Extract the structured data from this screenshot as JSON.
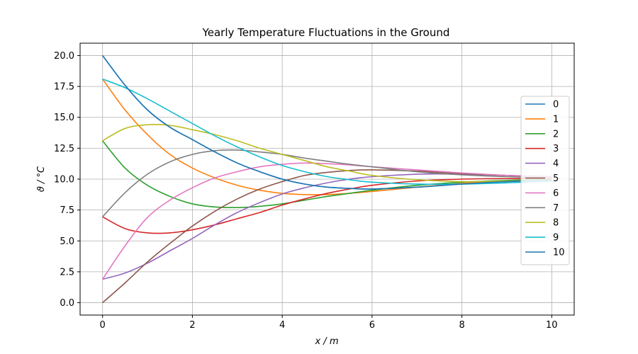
{
  "chart_data": {
    "type": "line",
    "title": "Yearly Temperature Fluctuations in the Ground",
    "xlabel": "x / m",
    "ylabel": "ϑ / °C",
    "xlim": [
      -0.5,
      10.5
    ],
    "ylim": [
      -1.0,
      21.0
    ],
    "xticks": [
      0,
      2,
      4,
      6,
      8,
      10
    ],
    "yticks": [
      0.0,
      2.5,
      5.0,
      7.5,
      10.0,
      12.5,
      15.0,
      17.5,
      20.0
    ],
    "xtick_labels": [
      "0",
      "2",
      "4",
      "6",
      "8",
      "10"
    ],
    "ytick_labels": [
      "0.0",
      "2.5",
      "5.0",
      "7.5",
      "10.0",
      "12.5",
      "15.0",
      "17.5",
      "20.0"
    ],
    "grid": true,
    "legend_position": "center-right",
    "series": [
      {
        "name": "0",
        "color": "#1f77b4",
        "x": [
          0,
          0.5,
          1,
          1.5,
          2,
          2.5,
          3,
          3.5,
          4,
          4.5,
          5,
          5.5,
          6,
          7,
          8,
          9,
          10
        ],
        "y": [
          20.0,
          17.6,
          15.6,
          14.2,
          13.2,
          12.2,
          11.3,
          10.6,
          10.0,
          9.6,
          9.35,
          9.25,
          9.2,
          9.35,
          9.6,
          9.8,
          9.9
        ]
      },
      {
        "name": "1",
        "color": "#ff7f0e",
        "x": [
          0,
          0.5,
          1,
          1.5,
          2,
          2.5,
          3,
          3.5,
          4,
          4.5,
          5,
          5.5,
          6,
          7,
          8,
          9,
          10
        ],
        "y": [
          18.1,
          15.6,
          13.6,
          12.0,
          10.9,
          10.1,
          9.5,
          9.1,
          8.85,
          8.75,
          8.75,
          8.85,
          9.0,
          9.35,
          9.65,
          9.85,
          9.95
        ]
      },
      {
        "name": "2",
        "color": "#2ca02c",
        "x": [
          0,
          0.5,
          1,
          1.5,
          2,
          2.5,
          3,
          3.5,
          4,
          4.5,
          5,
          5.5,
          6,
          7,
          8,
          9,
          10
        ],
        "y": [
          13.1,
          10.9,
          9.5,
          8.6,
          8.0,
          7.75,
          7.7,
          7.8,
          8.0,
          8.3,
          8.6,
          8.85,
          9.1,
          9.5,
          9.75,
          9.9,
          10.0
        ]
      },
      {
        "name": "3",
        "color": "#d62728",
        "x": [
          0,
          0.5,
          1,
          1.5,
          2,
          2.5,
          3,
          3.5,
          4,
          4.5,
          5,
          5.5,
          6,
          7,
          8,
          9,
          10
        ],
        "y": [
          6.95,
          6.0,
          5.65,
          5.65,
          5.9,
          6.3,
          6.8,
          7.3,
          7.9,
          8.4,
          8.85,
          9.2,
          9.5,
          9.85,
          10.0,
          10.05,
          10.05
        ]
      },
      {
        "name": "4",
        "color": "#9467bd",
        "x": [
          0,
          0.5,
          1,
          1.5,
          2,
          2.5,
          3,
          3.5,
          4,
          4.5,
          5,
          5.5,
          6,
          7,
          8,
          9,
          10
        ],
        "y": [
          1.9,
          2.4,
          3.2,
          4.2,
          5.2,
          6.3,
          7.3,
          8.1,
          8.8,
          9.3,
          9.7,
          10.0,
          10.2,
          10.4,
          10.4,
          10.3,
          10.2
        ]
      },
      {
        "name": "5",
        "color": "#8c564b",
        "x": [
          0,
          0.5,
          1,
          1.5,
          2,
          2.5,
          3,
          3.5,
          4,
          4.5,
          5,
          5.5,
          6,
          7,
          8,
          9,
          10
        ],
        "y": [
          0.0,
          1.6,
          3.3,
          4.8,
          6.2,
          7.4,
          8.4,
          9.2,
          9.8,
          10.3,
          10.55,
          10.7,
          10.75,
          10.65,
          10.45,
          10.3,
          10.15
        ]
      },
      {
        "name": "6",
        "color": "#e377c2",
        "x": [
          0,
          0.5,
          1,
          1.5,
          2,
          2.5,
          3,
          3.5,
          4,
          4.5,
          5,
          5.5,
          6,
          7,
          8,
          9,
          10
        ],
        "y": [
          1.9,
          4.6,
          6.9,
          8.3,
          9.3,
          10.1,
          10.6,
          11.0,
          11.2,
          11.3,
          11.25,
          11.15,
          11.0,
          10.75,
          10.5,
          10.3,
          10.15
        ]
      },
      {
        "name": "7",
        "color": "#7f7f7f",
        "x": [
          0,
          0.5,
          1,
          1.5,
          2,
          2.5,
          3,
          3.5,
          4,
          4.5,
          5,
          5.5,
          6,
          7,
          8,
          9,
          10
        ],
        "y": [
          6.95,
          8.9,
          10.4,
          11.4,
          12.0,
          12.3,
          12.35,
          12.2,
          12.0,
          11.7,
          11.45,
          11.2,
          11.0,
          10.6,
          10.35,
          10.2,
          10.1
        ]
      },
      {
        "name": "8",
        "color": "#bcbd22",
        "x": [
          0,
          0.5,
          1,
          1.5,
          2,
          2.5,
          3,
          3.5,
          4,
          4.5,
          5,
          5.5,
          6,
          7,
          8,
          9,
          10
        ],
        "y": [
          13.1,
          14.1,
          14.4,
          14.35,
          14.0,
          13.6,
          13.1,
          12.5,
          12.0,
          11.5,
          11.0,
          10.65,
          10.3,
          9.95,
          9.8,
          9.85,
          9.9
        ]
      },
      {
        "name": "9",
        "color": "#17becf",
        "x": [
          0,
          0.5,
          1,
          1.5,
          2,
          2.5,
          3,
          3.5,
          4,
          4.5,
          5,
          5.5,
          6,
          7,
          8,
          9,
          10
        ],
        "y": [
          18.1,
          17.4,
          16.5,
          15.5,
          14.5,
          13.5,
          12.6,
          11.8,
          11.1,
          10.6,
          10.2,
          9.95,
          9.75,
          9.6,
          9.6,
          9.7,
          9.85
        ]
      },
      {
        "name": "10",
        "color": "#1f77b4",
        "x": [
          0,
          0.5,
          1,
          1.5,
          2,
          2.5,
          3,
          3.5,
          4,
          4.5,
          5,
          5.5,
          6,
          7,
          8,
          9,
          10
        ],
        "y": [
          20.0,
          17.6,
          15.6,
          14.2,
          13.2,
          12.2,
          11.3,
          10.6,
          10.0,
          9.6,
          9.35,
          9.25,
          9.2,
          9.35,
          9.6,
          9.8,
          9.9
        ]
      }
    ]
  }
}
